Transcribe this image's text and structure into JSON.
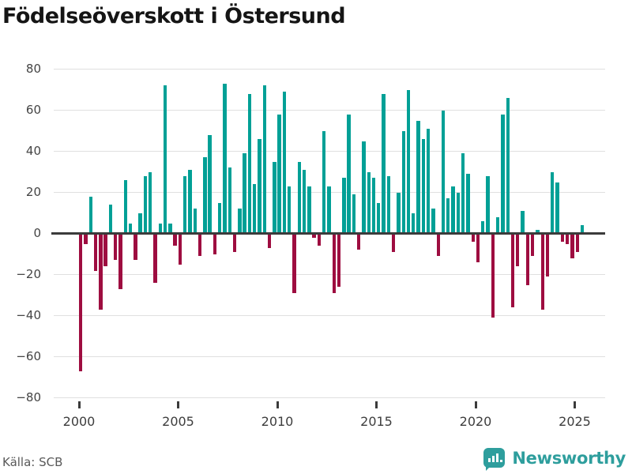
{
  "title": "Födelseöverskott i Östersund",
  "source": "Källa: SCB",
  "brand": "Newsworthy",
  "colors": {
    "positive": "#00A096",
    "negative": "#9E0D40",
    "gridline": "#e0e0e0",
    "zeroline": "#3b3b3b",
    "brand_teal": "#2E9E9D"
  },
  "chart_data": {
    "type": "bar",
    "title": "Födelseöverskott i Östersund",
    "xlabel": "",
    "ylabel": "",
    "ylim": [
      -80,
      80
    ],
    "grid": true,
    "legend": "none",
    "y_ticks": [
      80,
      60,
      40,
      20,
      0,
      -20,
      -40,
      -60,
      -80
    ],
    "x_ticks": [
      2000,
      2005,
      2010,
      2015,
      2020,
      2025
    ],
    "values": [
      {
        "t": "2000 Q1",
        "v": -67
      },
      {
        "t": "2000 Q2",
        "v": -5
      },
      {
        "t": "2000 Q3",
        "v": 18
      },
      {
        "t": "2000 Q4",
        "v": -18
      },
      {
        "t": "2001 Q1",
        "v": -37
      },
      {
        "t": "2001 Q2",
        "v": -16
      },
      {
        "t": "2001 Q3",
        "v": 14
      },
      {
        "t": "2001 Q4",
        "v": -13
      },
      {
        "t": "2002 Q1",
        "v": -27
      },
      {
        "t": "2002 Q2",
        "v": 26
      },
      {
        "t": "2002 Q3",
        "v": 5
      },
      {
        "t": "2002 Q4",
        "v": -13
      },
      {
        "t": "2003 Q1",
        "v": 10
      },
      {
        "t": "2003 Q2",
        "v": 28
      },
      {
        "t": "2003 Q3",
        "v": 30
      },
      {
        "t": "2003 Q4",
        "v": -24
      },
      {
        "t": "2004 Q1",
        "v": 5
      },
      {
        "t": "2004 Q2",
        "v": 72
      },
      {
        "t": "2004 Q3",
        "v": 5
      },
      {
        "t": "2004 Q4",
        "v": -6
      },
      {
        "t": "2005 Q1",
        "v": -15
      },
      {
        "t": "2005 Q2",
        "v": 28
      },
      {
        "t": "2005 Q3",
        "v": 31
      },
      {
        "t": "2005 Q4",
        "v": 12
      },
      {
        "t": "2006 Q1",
        "v": -11
      },
      {
        "t": "2006 Q2",
        "v": 37
      },
      {
        "t": "2006 Q3",
        "v": 48
      },
      {
        "t": "2006 Q4",
        "v": -10
      },
      {
        "t": "2007 Q1",
        "v": 15
      },
      {
        "t": "2007 Q2",
        "v": 73
      },
      {
        "t": "2007 Q3",
        "v": 32
      },
      {
        "t": "2007 Q4",
        "v": -9
      },
      {
        "t": "2008 Q1",
        "v": 12
      },
      {
        "t": "2008 Q2",
        "v": 39
      },
      {
        "t": "2008 Q3",
        "v": 68
      },
      {
        "t": "2008 Q4",
        "v": 24
      },
      {
        "t": "2009 Q1",
        "v": 46
      },
      {
        "t": "2009 Q2",
        "v": 72
      },
      {
        "t": "2009 Q3",
        "v": -7
      },
      {
        "t": "2009 Q4",
        "v": 35
      },
      {
        "t": "2010 Q1",
        "v": 58
      },
      {
        "t": "2010 Q2",
        "v": 69
      },
      {
        "t": "2010 Q3",
        "v": 23
      },
      {
        "t": "2010 Q4",
        "v": -29
      },
      {
        "t": "2011 Q1",
        "v": 35
      },
      {
        "t": "2011 Q2",
        "v": 31
      },
      {
        "t": "2011 Q3",
        "v": 23
      },
      {
        "t": "2011 Q4",
        "v": -2
      },
      {
        "t": "2012 Q1",
        "v": -6
      },
      {
        "t": "2012 Q2",
        "v": 50
      },
      {
        "t": "2012 Q3",
        "v": 23
      },
      {
        "t": "2012 Q4",
        "v": -29
      },
      {
        "t": "2013 Q1",
        "v": -26
      },
      {
        "t": "2013 Q2",
        "v": 27
      },
      {
        "t": "2013 Q3",
        "v": 58
      },
      {
        "t": "2013 Q4",
        "v": 19
      },
      {
        "t": "2014 Q1",
        "v": -8
      },
      {
        "t": "2014 Q2",
        "v": 45
      },
      {
        "t": "2014 Q3",
        "v": 30
      },
      {
        "t": "2014 Q4",
        "v": 27
      },
      {
        "t": "2015 Q1",
        "v": 15
      },
      {
        "t": "2015 Q2",
        "v": 68
      },
      {
        "t": "2015 Q3",
        "v": 28
      },
      {
        "t": "2015 Q4",
        "v": -9
      },
      {
        "t": "2016 Q1",
        "v": 20
      },
      {
        "t": "2016 Q2",
        "v": 50
      },
      {
        "t": "2016 Q3",
        "v": 70
      },
      {
        "t": "2016 Q4",
        "v": 10
      },
      {
        "t": "2017 Q1",
        "v": 55
      },
      {
        "t": "2017 Q2",
        "v": 46
      },
      {
        "t": "2017 Q3",
        "v": 51
      },
      {
        "t": "2017 Q4",
        "v": 12
      },
      {
        "t": "2018 Q1",
        "v": -11
      },
      {
        "t": "2018 Q2",
        "v": 60
      },
      {
        "t": "2018 Q3",
        "v": 17
      },
      {
        "t": "2018 Q4",
        "v": 23
      },
      {
        "t": "2019 Q1",
        "v": 20
      },
      {
        "t": "2019 Q2",
        "v": 39
      },
      {
        "t": "2019 Q3",
        "v": 29
      },
      {
        "t": "2019 Q4",
        "v": -4
      },
      {
        "t": "2020 Q1",
        "v": -14
      },
      {
        "t": "2020 Q2",
        "v": 6
      },
      {
        "t": "2020 Q3",
        "v": 28
      },
      {
        "t": "2020 Q4",
        "v": -41
      },
      {
        "t": "2021 Q1",
        "v": 8
      },
      {
        "t": "2021 Q2",
        "v": 58
      },
      {
        "t": "2021 Q3",
        "v": 66
      },
      {
        "t": "2021 Q4",
        "v": -36
      },
      {
        "t": "2022 Q1",
        "v": -16
      },
      {
        "t": "2022 Q2",
        "v": 11
      },
      {
        "t": "2022 Q3",
        "v": -25
      },
      {
        "t": "2022 Q4",
        "v": -11
      },
      {
        "t": "2023 Q1",
        "v": 2
      },
      {
        "t": "2023 Q2",
        "v": -37
      },
      {
        "t": "2023 Q3",
        "v": -21
      },
      {
        "t": "2023 Q4",
        "v": 30
      },
      {
        "t": "2024 Q1",
        "v": 25
      },
      {
        "t": "2024 Q2",
        "v": -4
      },
      {
        "t": "2024 Q3",
        "v": -5
      },
      {
        "t": "2024 Q4",
        "v": -12
      },
      {
        "t": "2025 Q1",
        "v": -9
      },
      {
        "t": "2025 Q2",
        "v": 4
      }
    ]
  }
}
